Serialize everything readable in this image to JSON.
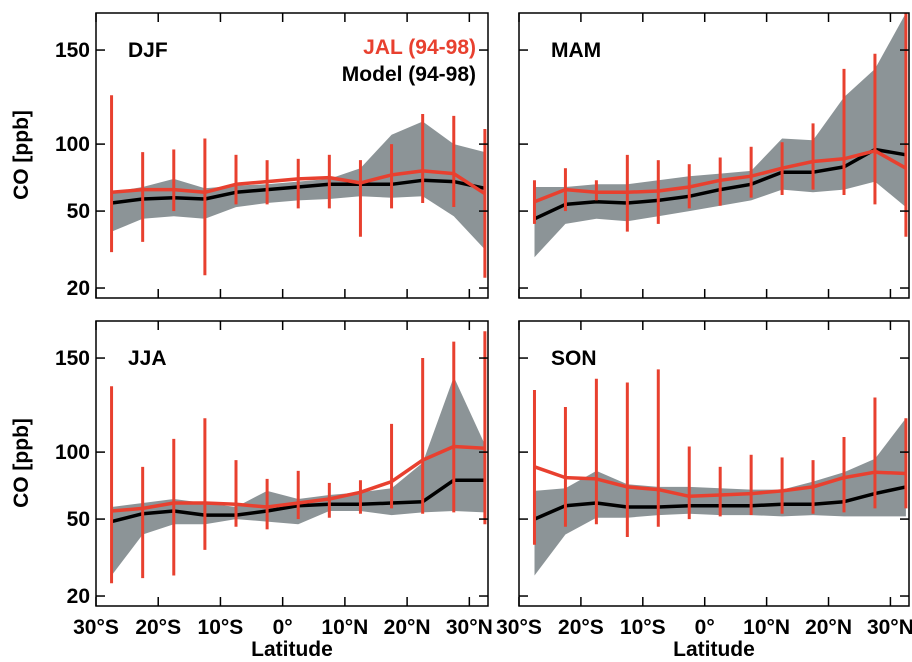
{
  "colors": {
    "observation": "#e8402f",
    "model": "#000000",
    "model_range": "#8c9497"
  },
  "legend": {
    "observation": "JAL (94-98)",
    "model": "Model (94-98)"
  },
  "axis": {
    "ylabel": "CO [ppb]",
    "xlabel": "Latitude",
    "yticks": [
      "150",
      "100",
      "50",
      "20"
    ],
    "xticks": [
      "30°S",
      "20°S",
      "10°S",
      "0°",
      "10°N",
      "20°N",
      "30°N"
    ]
  },
  "chart_data": [
    {
      "type": "line",
      "title": "DJF",
      "x": [
        -27.5,
        -22.5,
        -17.5,
        -12.5,
        -7.5,
        -2.5,
        2.5,
        7.5,
        12.5,
        17.5,
        22.5,
        27.5,
        32.5
      ],
      "xlim": [
        -30,
        33
      ],
      "ylim": [
        17,
        168
      ],
      "series": [
        {
          "name": "JAL (94-98)",
          "values": [
            64,
            66,
            66,
            64,
            70,
            72,
            74,
            75,
            71,
            77,
            80,
            78,
            63
          ],
          "error_low": [
            34,
            38,
            50,
            25,
            55,
            55,
            52,
            52,
            40,
            52,
            56,
            53,
            24
          ],
          "error_high": [
            126,
            94,
            96,
            103,
            92,
            88,
            89,
            92,
            88,
            100,
            116,
            115,
            108
          ]
        },
        {
          "name": "Model (94-98)",
          "values": [
            56,
            59,
            60,
            59,
            64,
            66,
            68,
            70,
            70,
            70,
            73,
            72,
            67
          ],
          "range_low": [
            42,
            47,
            48,
            47,
            53,
            56,
            58,
            59,
            61,
            60,
            61,
            48,
            35
          ],
          "range_high": [
            64,
            68,
            74,
            67,
            69,
            70,
            72,
            74,
            82,
            105,
            112,
            100,
            94
          ]
        }
      ]
    },
    {
      "type": "line",
      "title": "MAM",
      "x": [
        -27.5,
        -22.5,
        -17.5,
        -12.5,
        -7.5,
        -2.5,
        2.5,
        7.5,
        12.5,
        17.5,
        22.5,
        27.5,
        32.5
      ],
      "xlim": [
        -30,
        33
      ],
      "ylim": [
        17,
        168
      ],
      "series": [
        {
          "name": "JAL (94-98)",
          "values": [
            57,
            66,
            64,
            64,
            65,
            68,
            73,
            76,
            82,
            87,
            89,
            95,
            82
          ],
          "error_low": [
            45,
            50,
            58,
            42,
            45,
            52,
            54,
            60,
            62,
            66,
            62,
            55,
            40
          ],
          "error_high": [
            73,
            82,
            73,
            92,
            88,
            85,
            90,
            98,
            101,
            111,
            140,
            148,
            168
          ]
        },
        {
          "name": "Model (94-98)",
          "values": [
            47,
            55,
            57,
            56,
            58,
            61,
            66,
            70,
            79,
            79,
            83,
            96,
            92
          ],
          "range_low": [
            32,
            45,
            47,
            46,
            48,
            50,
            54,
            58,
            66,
            64,
            66,
            72,
            53
          ],
          "range_high": [
            68,
            68,
            70,
            70,
            73,
            76,
            78,
            80,
            103,
            102,
            125,
            140,
            168
          ]
        }
      ]
    },
    {
      "type": "line",
      "title": "JJA",
      "x": [
        -27.5,
        -22.5,
        -17.5,
        -12.5,
        -7.5,
        -2.5,
        2.5,
        7.5,
        12.5,
        17.5,
        22.5,
        27.5,
        32.5
      ],
      "xlim": [
        -30,
        33
      ],
      "ylim": [
        17,
        168
      ],
      "series": [
        {
          "name": "JAL (94-98)",
          "values": [
            56,
            58,
            62,
            62,
            61,
            59,
            62,
            65,
            70,
            78,
            94,
            103,
            102
          ],
          "error_low": [
            25,
            27,
            28,
            38,
            47,
            46,
            50,
            51,
            54,
            58,
            54,
            55,
            48
          ],
          "error_high": [
            135,
            89,
            107,
            118,
            94,
            80,
            86,
            77,
            79,
            115,
            150,
            158,
            163
          ]
        },
        {
          "name": "Model (94-98)",
          "values": [
            49,
            54,
            56,
            53,
            53,
            56,
            60,
            61,
            61,
            62,
            63,
            79,
            79
          ],
          "range_low": [
            28,
            44,
            48,
            48,
            50,
            49,
            48,
            56,
            56,
            53,
            55,
            56,
            55
          ],
          "range_high": [
            59,
            62,
            65,
            62,
            59,
            71,
            65,
            68,
            70,
            73,
            92,
            140,
            104
          ]
        }
      ]
    },
    {
      "type": "line",
      "title": "SON",
      "x": [
        -27.5,
        -22.5,
        -17.5,
        -12.5,
        -7.5,
        -2.5,
        2.5,
        7.5,
        12.5,
        17.5,
        22.5,
        27.5,
        32.5
      ],
      "xlim": [
        -30,
        33
      ],
      "ylim": [
        17,
        168
      ],
      "series": [
        {
          "name": "JAL (94-98)",
          "values": [
            89,
            81,
            80,
            74,
            72,
            67,
            68,
            69,
            71,
            74,
            81,
            85,
            84
          ],
          "error_low": [
            40,
            47,
            48,
            43,
            47,
            50,
            52,
            53,
            54,
            54,
            55,
            58,
            58
          ],
          "error_high": [
            133,
            124,
            139,
            137,
            144,
            103,
            89,
            98,
            96,
            94,
            108,
            129,
            118
          ]
        },
        {
          "name": "Model (94-98)",
          "values": [
            50,
            60,
            62,
            59,
            59,
            60,
            60,
            60,
            61,
            61,
            63,
            69,
            74
          ],
          "range_low": [
            28,
            44,
            51,
            51,
            53,
            54,
            53,
            53,
            52,
            53,
            52,
            52,
            52
          ],
          "range_high": [
            71,
            73,
            86,
            76,
            74,
            74,
            73,
            72,
            72,
            78,
            85,
            95,
            118
          ]
        }
      ]
    }
  ]
}
